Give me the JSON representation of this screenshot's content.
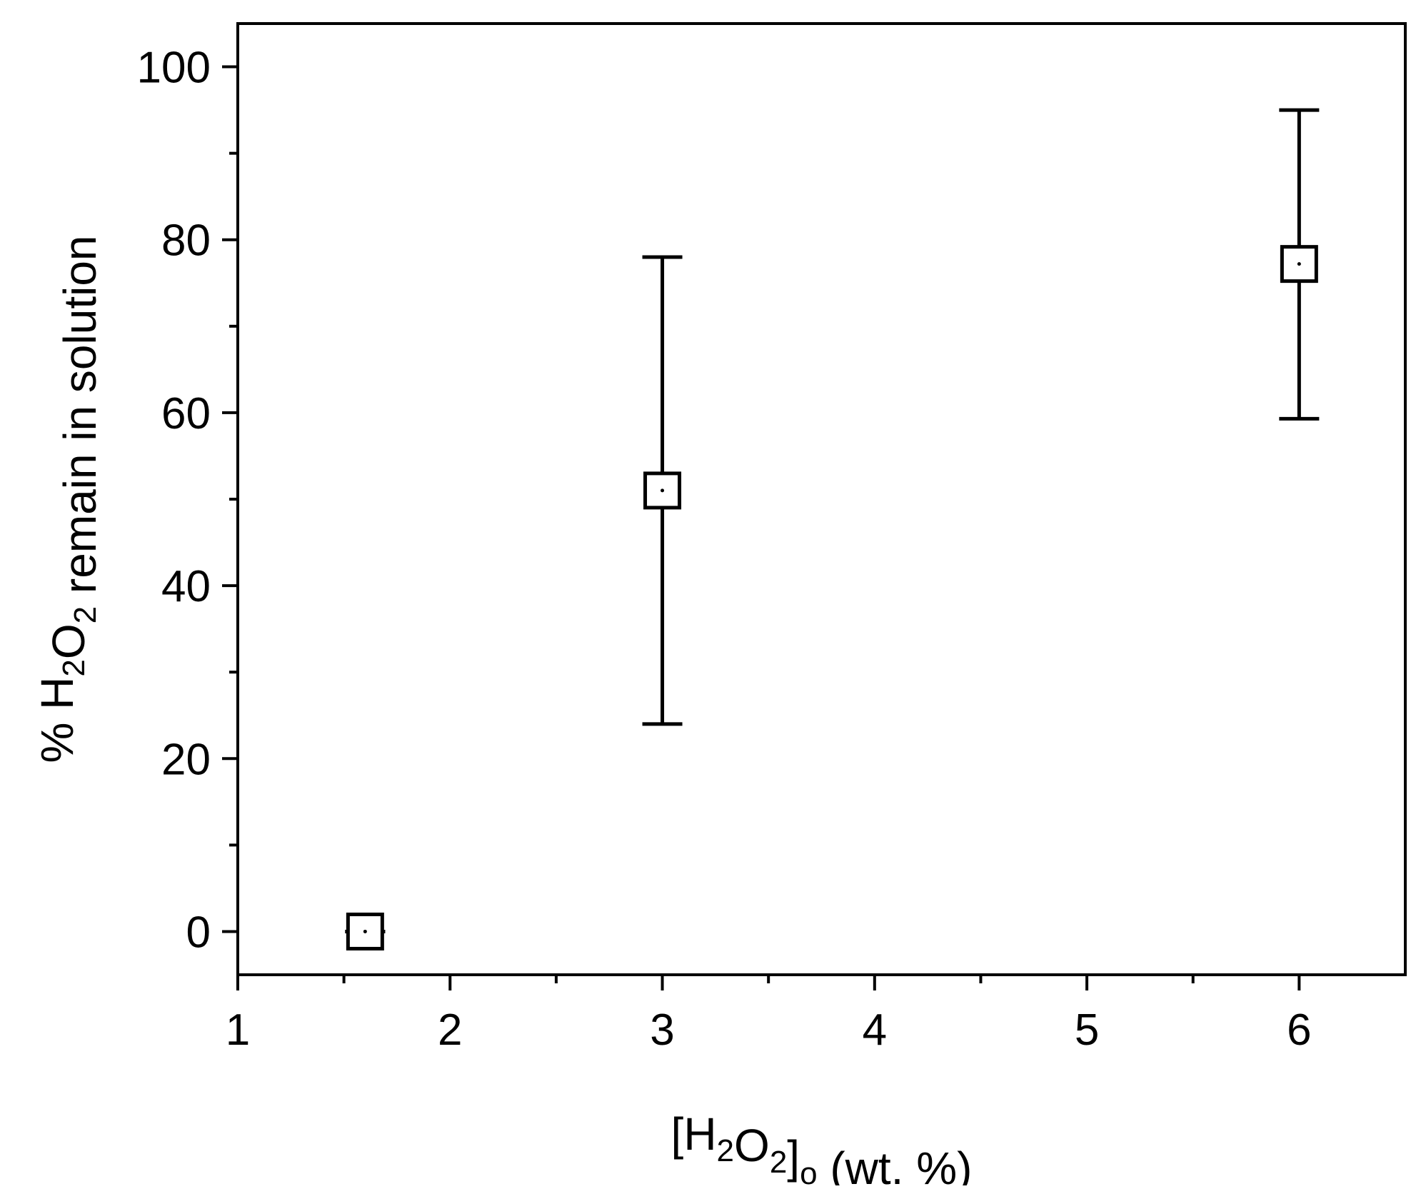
{
  "chart_data": {
    "type": "scatter",
    "title": "",
    "xlabel": {
      "parts": [
        {
          "text": "[H",
          "sub": false
        },
        {
          "text": "2",
          "sub": true
        },
        {
          "text": "O",
          "sub": false
        },
        {
          "text": "2",
          "sub": true
        },
        {
          "text": "]",
          "sub": false
        },
        {
          "text": "o",
          "sub": true
        },
        {
          "text": " (wt. %)",
          "sub": false
        }
      ]
    },
    "ylabel": {
      "parts": [
        {
          "text": "% H",
          "sub": false
        },
        {
          "text": "2",
          "sub": true
        },
        {
          "text": "O",
          "sub": false
        },
        {
          "text": "2",
          "sub": true
        },
        {
          "text": " remain in solution",
          "sub": false
        }
      ]
    },
    "xlim": [
      1,
      6.5
    ],
    "ylim": [
      -5,
      105
    ],
    "x_ticks": [
      1,
      2,
      3,
      4,
      5,
      6
    ],
    "x_tick_labels": [
      "1",
      "2",
      "3",
      "4",
      "5",
      "6"
    ],
    "x_minor_ticks": [
      1.5,
      2.5,
      3.5,
      4.5,
      5.5
    ],
    "y_ticks": [
      0,
      20,
      40,
      60,
      80,
      100
    ],
    "y_tick_labels": [
      "0",
      "20",
      "40",
      "60",
      "80",
      "100"
    ],
    "y_minor_ticks": [
      10,
      30,
      50,
      70,
      90
    ],
    "grid": false,
    "legend": "none",
    "marker": "open-square",
    "color": "#000000",
    "points": [
      {
        "x": 1.6,
        "y": 0,
        "err_low": 0,
        "err_high": 0
      },
      {
        "x": 3,
        "y": 51,
        "err_low": 24,
        "err_high": 78
      },
      {
        "x": 6,
        "y": 77.2,
        "err_low": 59.3,
        "err_high": 95
      }
    ]
  }
}
